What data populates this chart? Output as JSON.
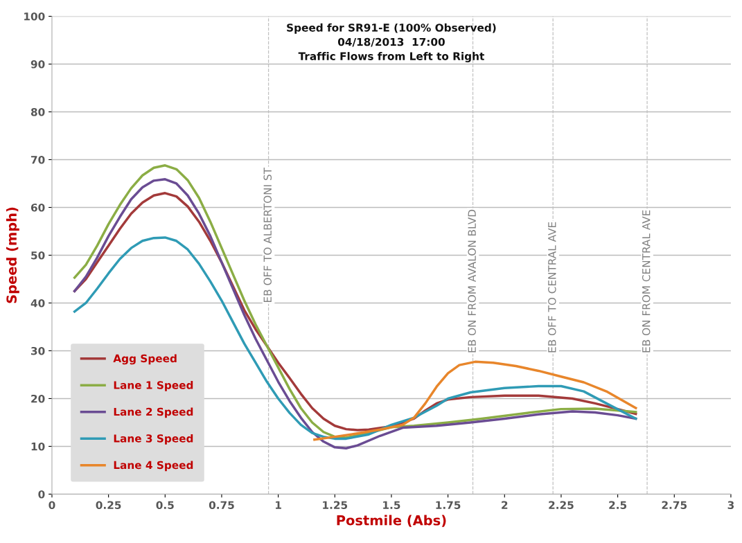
{
  "chart_data": {
    "type": "line",
    "title": "Speed for SR91-E (100% Observed)\n04/18/2013  17:00\nTraffic Flows from Left to Right",
    "xlabel": "Postmile (Abs)",
    "ylabel": "Speed (mph)",
    "xlim": [
      0,
      3
    ],
    "xticks": [
      0,
      0.25,
      0.5,
      0.75,
      1,
      1.25,
      1.5,
      1.75,
      2,
      2.25,
      2.5,
      2.75,
      3
    ],
    "ylim": [
      0,
      100
    ],
    "yticks": [
      0,
      10,
      20,
      30,
      40,
      50,
      60,
      70,
      80,
      90,
      100
    ],
    "grid": "y",
    "legend": "bottom left",
    "marker": "none",
    "line_style": "solid",
    "series": [
      {
        "name": "Agg Speed",
        "color": "#a33a3a",
        "x": [
          0.1,
          0.15,
          0.2,
          0.25,
          0.3,
          0.35,
          0.4,
          0.45,
          0.5,
          0.55,
          0.6,
          0.65,
          0.7,
          0.75,
          0.8,
          0.85,
          0.9,
          0.95,
          1.0,
          1.05,
          1.1,
          1.15,
          1.2,
          1.25,
          1.3,
          1.35,
          1.4,
          1.5,
          1.6,
          1.65,
          1.7,
          1.75,
          1.85,
          2.0,
          2.15,
          2.3,
          2.4,
          2.5,
          2.58
        ],
        "values": [
          42.5,
          45,
          48.5,
          52,
          55.5,
          58.7,
          61,
          62.5,
          63,
          62.3,
          60.2,
          57,
          53,
          48.5,
          43.5,
          38.5,
          34.5,
          31,
          27.5,
          24.3,
          21,
          18,
          15.8,
          14.3,
          13.6,
          13.4,
          13.5,
          14.2,
          15.8,
          17.5,
          19,
          19.8,
          20.3,
          20.6,
          20.6,
          20,
          19,
          17.8,
          16.8
        ]
      },
      {
        "name": "Lane 1 Speed",
        "color": "#8bad45",
        "x": [
          0.1,
          0.15,
          0.2,
          0.25,
          0.3,
          0.35,
          0.4,
          0.45,
          0.5,
          0.55,
          0.6,
          0.65,
          0.7,
          0.75,
          0.8,
          0.85,
          0.9,
          0.95,
          1.0,
          1.05,
          1.1,
          1.15,
          1.2,
          1.25,
          1.3,
          1.4,
          1.5,
          1.6,
          1.75,
          1.9,
          2.1,
          2.25,
          2.4,
          2.58
        ],
        "values": [
          45.3,
          48,
          52,
          56.5,
          60.5,
          64,
          66.7,
          68.3,
          68.8,
          68,
          65.7,
          62,
          57,
          51.5,
          46,
          40.5,
          35.5,
          31,
          26.5,
          22,
          18,
          15,
          13,
          12,
          11.8,
          12.8,
          14,
          14.3,
          15,
          15.8,
          17,
          17.8,
          17.9,
          17.2
        ]
      },
      {
        "name": "Lane 2 Speed",
        "color": "#6a4c93",
        "x": [
          0.1,
          0.15,
          0.2,
          0.25,
          0.3,
          0.35,
          0.4,
          0.45,
          0.5,
          0.55,
          0.6,
          0.65,
          0.7,
          0.75,
          0.8,
          0.85,
          0.9,
          0.95,
          1.0,
          1.05,
          1.1,
          1.15,
          1.2,
          1.25,
          1.3,
          1.35,
          1.45,
          1.55,
          1.7,
          1.85,
          2.0,
          2.15,
          2.3,
          2.4,
          2.5,
          2.58
        ],
        "values": [
          42.5,
          45.5,
          49.5,
          54,
          58,
          61.7,
          64.2,
          65.6,
          65.9,
          65,
          62.5,
          58.7,
          54,
          48.5,
          43,
          37.5,
          32.5,
          28,
          23.5,
          19.5,
          16,
          13,
          11,
          9.8,
          9.6,
          10.2,
          12.2,
          13.9,
          14.3,
          15,
          15.8,
          16.7,
          17.3,
          17.1,
          16.5,
          15.8
        ]
      },
      {
        "name": "Lane 3 Speed",
        "color": "#2f9bb5",
        "x": [
          0.1,
          0.15,
          0.2,
          0.25,
          0.3,
          0.35,
          0.4,
          0.45,
          0.5,
          0.55,
          0.6,
          0.65,
          0.7,
          0.75,
          0.8,
          0.85,
          0.9,
          0.95,
          1.0,
          1.05,
          1.1,
          1.15,
          1.2,
          1.25,
          1.3,
          1.4,
          1.5,
          1.6,
          1.7,
          1.75,
          1.85,
          2.0,
          2.15,
          2.25,
          2.35,
          2.45,
          2.58
        ],
        "values": [
          38.2,
          40,
          43,
          46.2,
          49.2,
          51.5,
          53,
          53.6,
          53.7,
          53,
          51.2,
          48.2,
          44.5,
          40.5,
          36,
          31.5,
          27.5,
          23.5,
          20,
          17,
          14.5,
          12.8,
          12,
          11.6,
          11.6,
          12.5,
          14.5,
          16,
          18.5,
          20,
          21.3,
          22.2,
          22.6,
          22.6,
          21.5,
          19,
          15.8
        ]
      },
      {
        "name": "Lane 4 Speed",
        "color": "#e8862b",
        "x": [
          1.16,
          1.25,
          1.35,
          1.45,
          1.55,
          1.6,
          1.65,
          1.7,
          1.75,
          1.8,
          1.87,
          1.95,
          2.05,
          2.15,
          2.25,
          2.35,
          2.45,
          2.58
        ],
        "values": [
          11.4,
          12,
          12.7,
          13.5,
          14.5,
          16,
          19,
          22.5,
          25.3,
          27,
          27.7,
          27.5,
          26.8,
          25.8,
          24.6,
          23.4,
          21.5,
          18
        ]
      }
    ],
    "ref_lines": [
      {
        "axis": "x",
        "value": 0.957,
        "label": "EB OFF TO ALBERTONI ST",
        "color": "#c0c0c0",
        "line_style": "dashed"
      },
      {
        "axis": "x",
        "value": 1.86,
        "label": "EB ON FROM AVALON BLVD",
        "color": "#c0c0c0",
        "line_style": "dashed"
      },
      {
        "axis": "x",
        "value": 2.214,
        "label": "EB OFF TO CENTRAL AVE",
        "color": "#c0c0c0",
        "line_style": "dashed"
      },
      {
        "axis": "x",
        "value": 2.63,
        "label": "EB ON FROM CENTRAL AVE",
        "color": "#c0c0c0",
        "line_style": "dashed"
      }
    ]
  }
}
